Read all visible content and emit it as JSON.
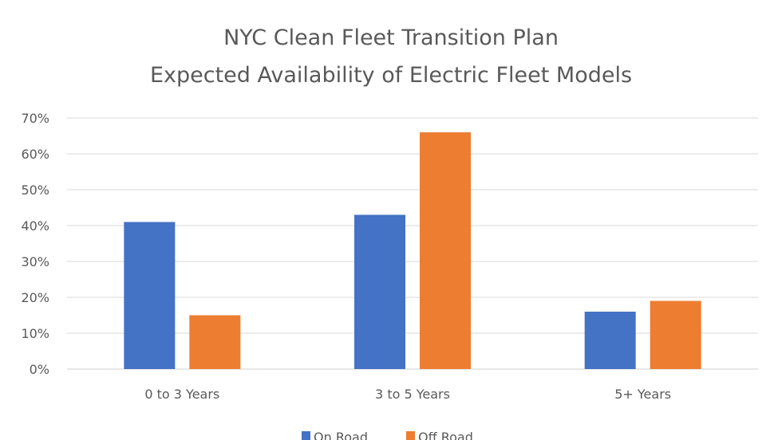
{
  "chart_data": {
    "type": "bar",
    "title_lines": [
      "NYC Clean Fleet Transition Plan",
      "Expected Availability of Electric Fleet Models"
    ],
    "categories": [
      "0 to 3 Years",
      "3 to 5 Years",
      "5+ Years"
    ],
    "series": [
      {
        "name": "On Road",
        "values": [
          41,
          43,
          16
        ],
        "color": "#4472C4"
      },
      {
        "name": "Off Road",
        "values": [
          15,
          66,
          19
        ],
        "color": "#ED7D31"
      }
    ],
    "y_unit": "%",
    "ylim": [
      0,
      70
    ],
    "ytick_step": 10,
    "grid": true,
    "legend_position": "bottom"
  }
}
